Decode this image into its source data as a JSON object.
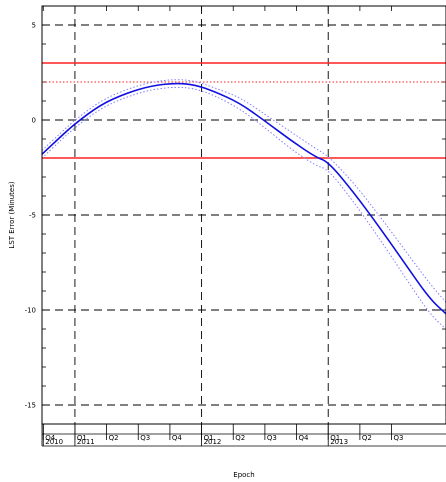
{
  "chart_data": {
    "type": "line",
    "xlabel": "Epoch",
    "ylabel": "LST Error (Minutes)",
    "ylim": [
      -16,
      6
    ],
    "xlim": [
      2010.74,
      2013.93
    ],
    "y_ticks": [
      "5",
      "0",
      "-5",
      "-10",
      "-15"
    ],
    "y_tick_values": [
      5,
      0,
      -5,
      -10,
      -15
    ],
    "grid": true,
    "quarter_labels": [
      {
        "label": "Q4",
        "x": 2010.75
      },
      {
        "label": "Q1",
        "x": 2011.0
      },
      {
        "label": "Q2",
        "x": 2011.25
      },
      {
        "label": "Q3",
        "x": 2011.5
      },
      {
        "label": "Q4",
        "x": 2011.75
      },
      {
        "label": "Q1",
        "x": 2012.0
      },
      {
        "label": "Q2",
        "x": 2012.25
      },
      {
        "label": "Q3",
        "x": 2012.5
      },
      {
        "label": "Q4",
        "x": 2012.75
      },
      {
        "label": "Q1",
        "x": 2013.0
      },
      {
        "label": "Q2",
        "x": 2013.25
      },
      {
        "label": "Q3",
        "x": 2013.5
      }
    ],
    "year_labels": [
      {
        "label": "2010",
        "x": 2010.75
      },
      {
        "label": "2011",
        "x": 2011.0
      },
      {
        "label": "2012",
        "x": 2012.0
      },
      {
        "label": "2013",
        "x": 2013.0
      }
    ],
    "year_gridlines": [
      2011.0,
      2012.0,
      2013.0
    ],
    "reference_lines": [
      {
        "y": 3.0,
        "style": "solid",
        "color": "#ff2020"
      },
      {
        "y": 2.0,
        "style": "dotted",
        "color": "#ff2020"
      },
      {
        "y": -2.0,
        "style": "solid",
        "color": "#ff2020"
      }
    ],
    "series": [
      {
        "style": "solid",
        "color": "#1010e0",
        "x": [
          2010.74,
          2010.9,
          2011.0,
          2011.2,
          2011.4,
          2011.6,
          2011.8,
          2011.95,
          2012.1,
          2012.3,
          2012.5,
          2012.7,
          2012.9,
          2013.0,
          2013.2,
          2013.4,
          2013.6,
          2013.8,
          2013.93
        ],
        "y": [
          -1.8,
          -0.8,
          -0.2,
          0.8,
          1.4,
          1.8,
          1.95,
          1.85,
          1.5,
          0.9,
          -0.05,
          -1.05,
          -1.95,
          -2.2,
          -3.8,
          -5.6,
          -7.5,
          -9.4,
          -10.2
        ]
      },
      {
        "style": "dotted",
        "color": "#8080ff",
        "x": [
          2010.74,
          2010.9,
          2011.0,
          2011.2,
          2011.4,
          2011.6,
          2011.8,
          2011.95,
          2012.1,
          2012.3,
          2012.5,
          2012.7,
          2012.9,
          2013.0,
          2013.2,
          2013.4,
          2013.6,
          2013.8,
          2013.93
        ],
        "y": [
          -1.6,
          -0.6,
          0.0,
          1.0,
          1.6,
          2.0,
          2.15,
          2.05,
          1.7,
          1.2,
          0.3,
          -0.6,
          -1.5,
          -1.9,
          -3.3,
          -5.0,
          -6.8,
          -8.6,
          -9.6
        ]
      },
      {
        "style": "dotted",
        "color": "#8080ff",
        "x": [
          2010.74,
          2010.9,
          2011.0,
          2011.2,
          2011.4,
          2011.6,
          2011.8,
          2011.95,
          2012.1,
          2012.3,
          2012.5,
          2012.7,
          2012.9,
          2013.0,
          2013.2,
          2013.4,
          2013.6,
          2013.8,
          2013.93
        ],
        "y": [
          -2.0,
          -1.0,
          -0.4,
          0.6,
          1.2,
          1.6,
          1.75,
          1.65,
          1.3,
          0.6,
          -0.4,
          -1.5,
          -2.4,
          -2.6,
          -4.3,
          -6.2,
          -8.2,
          -10.2,
          -11.0
        ]
      }
    ]
  }
}
